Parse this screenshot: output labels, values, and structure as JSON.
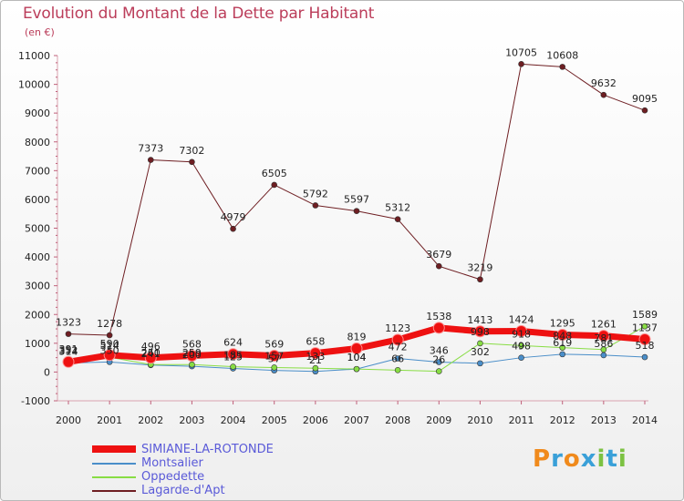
{
  "title": "Evolution du Montant de la Dette par Habitant",
  "subtitle": "(en €)",
  "logo": {
    "letters": [
      "P",
      "r",
      "o",
      "x",
      "i",
      "t",
      "i"
    ],
    "colors": [
      "#f08a1c",
      "#3aa0d8",
      "#f08a1c",
      "#3aa0d8",
      "#7cc242",
      "#3aa0d8",
      "#7cc242"
    ]
  },
  "chart_data": {
    "type": "line",
    "x": [
      "2000",
      "2001",
      "2002",
      "2003",
      "2004",
      "2005",
      "2006",
      "2007",
      "2008",
      "2009",
      "2010",
      "2011",
      "2012",
      "2013",
      "2014"
    ],
    "ylim": [
      -1000,
      11000
    ],
    "yticks": [
      -1000,
      0,
      1000,
      2000,
      3000,
      4000,
      5000,
      6000,
      7000,
      8000,
      9000,
      10000,
      11000
    ],
    "grid": false,
    "legend_position": "bottom-left",
    "series": [
      {
        "name": "SIMIANE-LA-ROTONDE",
        "color": "#ee1111",
        "width": 7,
        "marker": 6,
        "values": [
          352,
          590,
          496,
          568,
          624,
          569,
          658,
          819,
          1123,
          1538,
          1413,
          1424,
          1295,
          1261,
          1137
        ],
        "labels": [
          "352",
          "590",
          "496",
          "568",
          "624",
          "569",
          "658",
          "819",
          "1123",
          "1538",
          "1413",
          "1424",
          "1295",
          "1261",
          "1137"
        ],
        "label_pos": [
          "above",
          "above",
          "above",
          "above",
          "above",
          "above",
          "above",
          "above",
          "above",
          "above",
          "above",
          "above",
          "above",
          "above",
          "above"
        ]
      },
      {
        "name": "Montsalier",
        "color": "#4a8ec9",
        "width": 1,
        "marker": 3,
        "values": [
          314,
          350,
          241,
          200,
          125,
          57,
          21,
          104,
          472,
          346,
          302,
          498,
          619,
          586,
          518
        ],
        "labels": [
          "314",
          "350",
          "241",
          "200",
          "125",
          "57",
          "21",
          "104",
          "472",
          "346",
          "302",
          "498",
          "619",
          "586",
          "518"
        ],
        "label_pos": [
          "above",
          "above",
          "above",
          "above",
          "above",
          "above",
          "above",
          "above",
          "above",
          "above",
          "above",
          "above",
          "above",
          "above",
          "above"
        ]
      },
      {
        "name": "Oppedette",
        "color": "#88dd44",
        "width": 1,
        "marker": 3,
        "values": [
          391,
          514,
          260,
          259,
          185,
          157,
          133,
          104,
          66,
          26,
          998,
          918,
          848,
          781,
          1589
        ],
        "labels": [
          "391",
          "514",
          "260",
          "259",
          "185",
          "157",
          "133",
          "104",
          "66",
          "26",
          "998",
          "918",
          "848",
          "781",
          "1589"
        ],
        "label_pos": [
          "above",
          "above",
          "above",
          "above",
          "above",
          "above",
          "above",
          "above",
          "above",
          "above",
          "above",
          "above",
          "above",
          "above",
          "above"
        ]
      },
      {
        "name": "Lagarde-d'Apt",
        "color": "#6e1e22",
        "width": 1,
        "marker": 3,
        "values": [
          1323,
          1278,
          7373,
          7302,
          4979,
          6505,
          5792,
          5597,
          5312,
          3679,
          3219,
          10705,
          10608,
          9632,
          9095
        ],
        "labels": [
          "1323",
          "1278",
          "7373",
          "7302",
          "4979",
          "6505",
          "5792",
          "5597",
          "5312",
          "3679",
          "3219",
          "10705",
          "10608",
          "9632",
          "9095"
        ],
        "label_pos": [
          "above",
          "above",
          "above",
          "above",
          "above",
          "above",
          "above",
          "above",
          "above",
          "above",
          "above",
          "above",
          "above",
          "above",
          "above"
        ]
      }
    ]
  }
}
